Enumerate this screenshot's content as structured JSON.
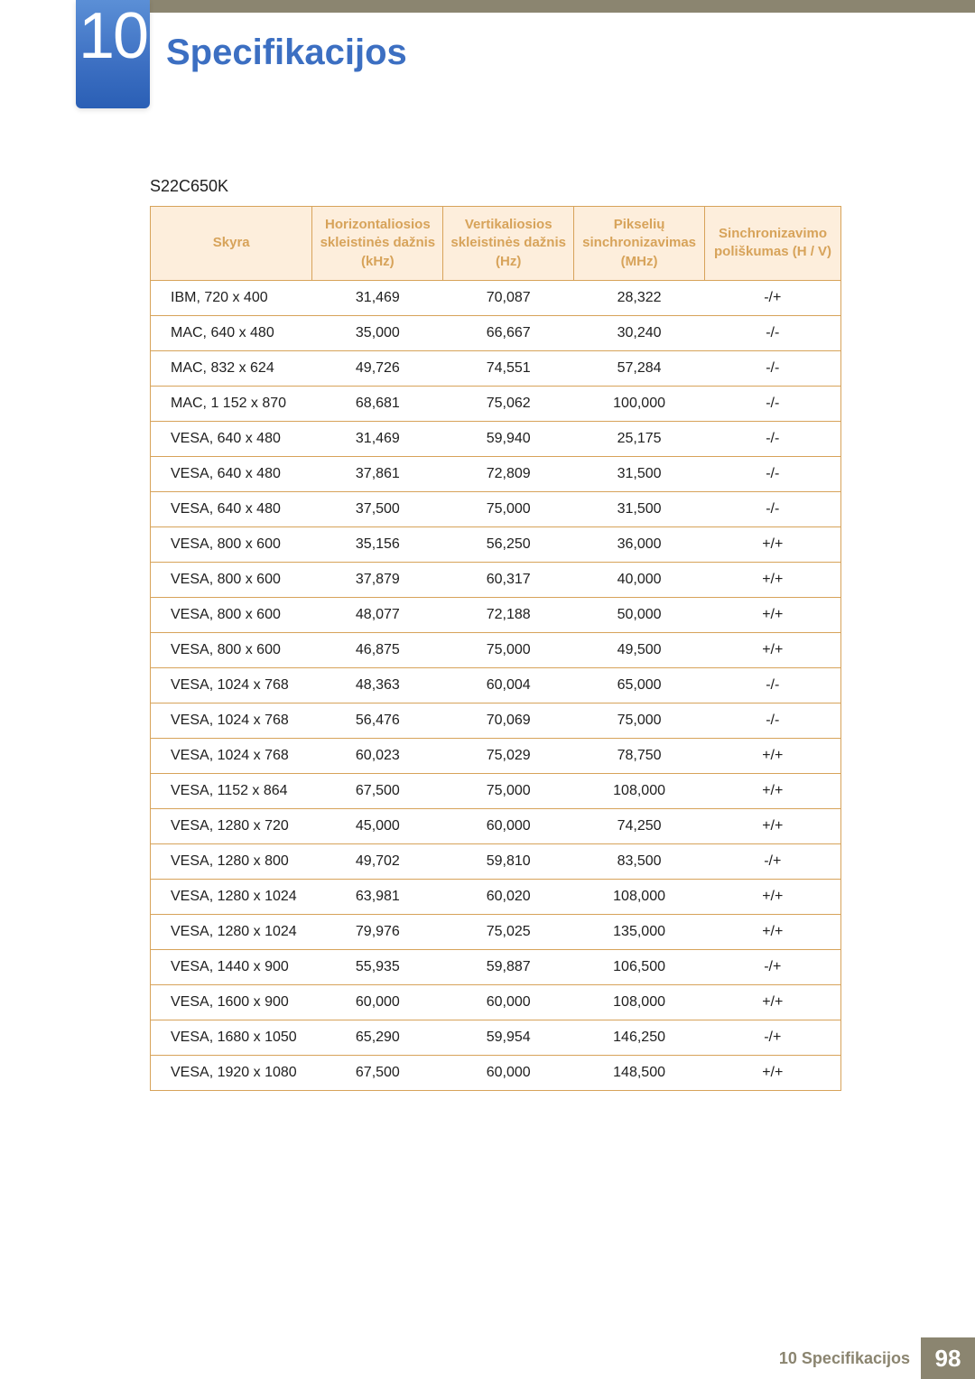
{
  "chapter_number": "10",
  "title": "Specifikacijos",
  "model": "S22C650K",
  "columns": [
    "Skyra",
    "Horizontaliosios skleistinės dažnis (kHz)",
    "Vertikaliosios skleistinės dažnis (Hz)",
    "Pikselių sinchronizavimas (MHz)",
    "Sinchronizavimo poliškumas (H / V)"
  ],
  "col_headers": {
    "c0": "Skyra",
    "c1": "Horizontaliosios skleistinės dažnis (kHz)",
    "c2": "Vertikaliosios skleistinės dažnis (Hz)",
    "c3": "Pikselių sinchronizavimas (MHz)",
    "c4": "Sinchronizavimo poliškumas (H / V)"
  },
  "rows": [
    {
      "c0": "IBM, 720 x 400",
      "c1": "31,469",
      "c2": "70,087",
      "c3": "28,322",
      "c4": "-/+"
    },
    {
      "c0": "MAC, 640 x 480",
      "c1": "35,000",
      "c2": "66,667",
      "c3": "30,240",
      "c4": "-/-"
    },
    {
      "c0": "MAC, 832 x 624",
      "c1": "49,726",
      "c2": "74,551",
      "c3": "57,284",
      "c4": "-/-"
    },
    {
      "c0": "MAC, 1 152 x 870",
      "c1": "68,681",
      "c2": "75,062",
      "c3": "100,000",
      "c4": "-/-"
    },
    {
      "c0": "VESA, 640 x 480",
      "c1": "31,469",
      "c2": "59,940",
      "c3": "25,175",
      "c4": "-/-"
    },
    {
      "c0": "VESA, 640 x 480",
      "c1": "37,861",
      "c2": "72,809",
      "c3": "31,500",
      "c4": "-/-"
    },
    {
      "c0": "VESA, 640 x 480",
      "c1": "37,500",
      "c2": "75,000",
      "c3": "31,500",
      "c4": "-/-"
    },
    {
      "c0": "VESA, 800 x 600",
      "c1": "35,156",
      "c2": "56,250",
      "c3": "36,000",
      "c4": "+/+"
    },
    {
      "c0": "VESA, 800 x 600",
      "c1": "37,879",
      "c2": "60,317",
      "c3": "40,000",
      "c4": "+/+"
    },
    {
      "c0": "VESA, 800 x 600",
      "c1": "48,077",
      "c2": "72,188",
      "c3": "50,000",
      "c4": "+/+"
    },
    {
      "c0": "VESA, 800 x 600",
      "c1": "46,875",
      "c2": "75,000",
      "c3": "49,500",
      "c4": "+/+"
    },
    {
      "c0": "VESA, 1024 x 768",
      "c1": "48,363",
      "c2": "60,004",
      "c3": "65,000",
      "c4": "-/-"
    },
    {
      "c0": "VESA, 1024 x 768",
      "c1": "56,476",
      "c2": "70,069",
      "c3": "75,000",
      "c4": "-/-"
    },
    {
      "c0": "VESA, 1024 x 768",
      "c1": "60,023",
      "c2": "75,029",
      "c3": "78,750",
      "c4": "+/+"
    },
    {
      "c0": "VESA, 1152 x 864",
      "c1": "67,500",
      "c2": "75,000",
      "c3": "108,000",
      "c4": "+/+"
    },
    {
      "c0": "VESA, 1280 x 720",
      "c1": "45,000",
      "c2": "60,000",
      "c3": "74,250",
      "c4": "+/+"
    },
    {
      "c0": "VESA, 1280 x 800",
      "c1": "49,702",
      "c2": "59,810",
      "c3": "83,500",
      "c4": "-/+"
    },
    {
      "c0": "VESA, 1280 x 1024",
      "c1": "63,981",
      "c2": "60,020",
      "c3": "108,000",
      "c4": "+/+"
    },
    {
      "c0": "VESA, 1280 x 1024",
      "c1": "79,976",
      "c2": "75,025",
      "c3": "135,000",
      "c4": "+/+"
    },
    {
      "c0": "VESA, 1440 x 900",
      "c1": "55,935",
      "c2": "59,887",
      "c3": "106,500",
      "c4": "-/+"
    },
    {
      "c0": "VESA, 1600 x 900",
      "c1": "60,000",
      "c2": "60,000",
      "c3": "108,000",
      "c4": "+/+"
    },
    {
      "c0": "VESA, 1680 x 1050",
      "c1": "65,290",
      "c2": "59,954",
      "c3": "146,250",
      "c4": "-/+"
    },
    {
      "c0": "VESA, 1920 x 1080",
      "c1": "67,500",
      "c2": "60,000",
      "c3": "148,500",
      "c4": "+/+"
    }
  ],
  "footer": {
    "label": "10 Specifikacijos",
    "page": "98"
  },
  "colors": {
    "header_bg": "#fdeedc",
    "header_text": "#d7a35a",
    "border": "#d7a35a",
    "title": "#3c6fc2",
    "badge_grad_top": "#5b8fd6",
    "badge_grad_bot": "#2a5fb5",
    "stripe": "#8b8570"
  }
}
